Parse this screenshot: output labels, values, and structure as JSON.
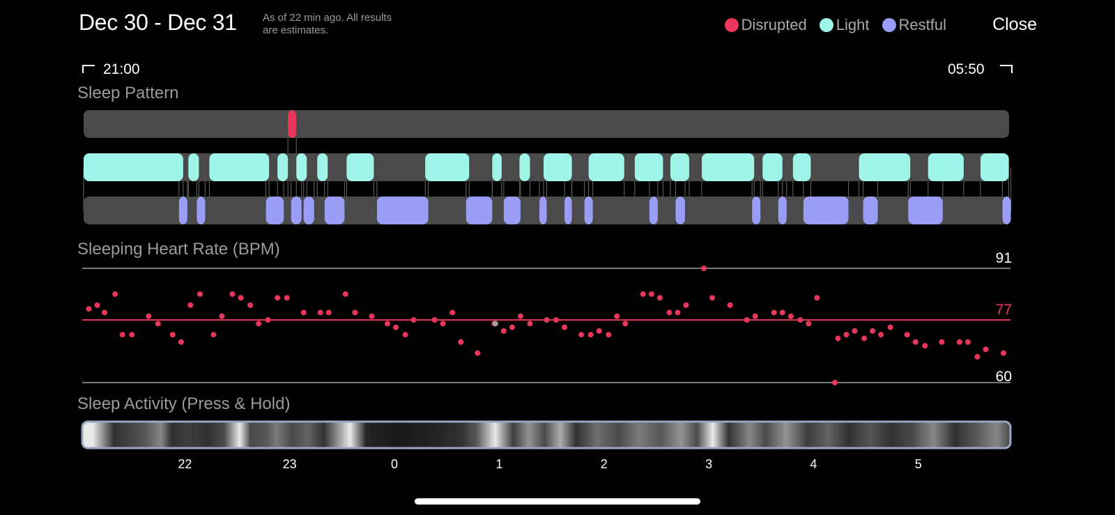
{
  "header": {
    "title": "Dec 30 - Dec 31",
    "subtitle": "As of 22 min ago. All results\nare estimates.",
    "close_label": "Close"
  },
  "legend": [
    {
      "label": "Disrupted",
      "color": "#e8375a"
    },
    {
      "label": "Light",
      "color": "#9ef5e8"
    },
    {
      "label": "Restful",
      "color": "#9a9df5"
    }
  ],
  "time_range": {
    "start": "21:00",
    "end": "05:50"
  },
  "sleep_pattern": {
    "label": "Sleep Pattern",
    "track_color": "#4a4a4a",
    "disrupted": [
      [
        1.95,
        2.03
      ]
    ],
    "light": [
      [
        0.0,
        0.95
      ],
      [
        1.0,
        1.1
      ],
      [
        1.2,
        1.77
      ],
      [
        1.85,
        1.95
      ],
      [
        2.03,
        2.13
      ],
      [
        2.23,
        2.33
      ],
      [
        2.51,
        2.77
      ],
      [
        3.26,
        3.68
      ],
      [
        3.9,
        3.99
      ],
      [
        4.16,
        4.26
      ],
      [
        4.39,
        4.66
      ],
      [
        4.82,
        5.16
      ],
      [
        5.26,
        5.53
      ],
      [
        5.6,
        5.78
      ],
      [
        5.9,
        6.4
      ],
      [
        6.48,
        6.67
      ],
      [
        6.77,
        6.94
      ],
      [
        7.4,
        7.89
      ],
      [
        8.06,
        8.4
      ],
      [
        8.56,
        8.83
      ]
    ],
    "restful": [
      [
        0.91,
        0.99
      ],
      [
        1.08,
        1.16
      ],
      [
        1.74,
        1.91
      ],
      [
        1.98,
        2.08
      ],
      [
        2.1,
        2.2
      ],
      [
        2.3,
        2.49
      ],
      [
        2.8,
        3.29
      ],
      [
        3.65,
        3.9
      ],
      [
        4.01,
        4.17
      ],
      [
        4.35,
        4.42
      ],
      [
        4.59,
        4.66
      ],
      [
        4.78,
        4.86
      ],
      [
        5.4,
        5.48
      ],
      [
        5.65,
        5.74
      ],
      [
        6.38,
        6.46
      ],
      [
        6.63,
        6.71
      ],
      [
        6.87,
        7.3
      ],
      [
        7.44,
        7.58
      ],
      [
        7.87,
        8.2
      ],
      [
        8.77,
        8.85
      ]
    ]
  },
  "heart_rate": {
    "label": "Sleeping Heart Rate (BPM)",
    "max_label": "91",
    "avg_label": "77",
    "min_label": "60",
    "max": 91,
    "avg": 77,
    "min": 60,
    "dot_color": "#e8375a",
    "avg_color": "#e8375a",
    "highlight_color": "#a0a0a0",
    "points": [
      [
        0.05,
        80
      ],
      [
        0.13,
        81
      ],
      [
        0.2,
        79
      ],
      [
        0.3,
        84
      ],
      [
        0.37,
        73
      ],
      [
        0.46,
        73
      ],
      [
        0.62,
        78
      ],
      [
        0.71,
        76
      ],
      [
        0.85,
        73
      ],
      [
        0.93,
        71
      ],
      [
        1.02,
        81
      ],
      [
        1.11,
        84
      ],
      [
        1.24,
        73
      ],
      [
        1.32,
        78
      ],
      [
        1.42,
        84
      ],
      [
        1.5,
        83
      ],
      [
        1.59,
        81
      ],
      [
        1.67,
        76
      ],
      [
        1.76,
        77
      ],
      [
        1.85,
        83
      ],
      [
        1.94,
        83
      ],
      [
        2.1,
        79
      ],
      [
        2.26,
        79
      ],
      [
        2.34,
        79
      ],
      [
        2.5,
        84
      ],
      [
        2.59,
        79
      ],
      [
        2.75,
        78
      ],
      [
        2.9,
        76
      ],
      [
        2.98,
        75
      ],
      [
        3.07,
        73
      ],
      [
        3.15,
        77
      ],
      [
        3.35,
        77
      ],
      [
        3.43,
        76
      ],
      [
        3.52,
        79
      ],
      [
        3.6,
        71
      ],
      [
        3.76,
        68
      ],
      [
        3.92,
        76
      ],
      [
        4.01,
        74
      ],
      [
        4.09,
        75
      ],
      [
        4.17,
        78
      ],
      [
        4.26,
        76
      ],
      [
        4.42,
        77
      ],
      [
        4.51,
        77
      ],
      [
        4.59,
        75
      ],
      [
        4.75,
        73
      ],
      [
        4.84,
        73
      ],
      [
        4.92,
        74
      ],
      [
        5.01,
        73
      ],
      [
        5.09,
        78
      ],
      [
        5.17,
        76
      ],
      [
        5.34,
        84
      ],
      [
        5.42,
        84
      ],
      [
        5.5,
        83
      ],
      [
        5.59,
        79
      ],
      [
        5.67,
        79
      ],
      [
        5.75,
        81
      ],
      [
        5.92,
        91
      ],
      [
        6.0,
        83
      ],
      [
        6.17,
        81
      ],
      [
        6.33,
        77
      ],
      [
        6.41,
        78
      ],
      [
        6.59,
        79
      ],
      [
        6.67,
        79
      ],
      [
        6.75,
        78
      ],
      [
        6.84,
        77
      ],
      [
        6.92,
        76
      ],
      [
        7.0,
        83
      ],
      [
        7.17,
        60
      ],
      [
        7.2,
        72
      ],
      [
        7.28,
        73
      ],
      [
        7.36,
        74
      ],
      [
        7.45,
        72
      ],
      [
        7.53,
        74
      ],
      [
        7.61,
        73
      ],
      [
        7.7,
        75
      ],
      [
        7.86,
        73
      ],
      [
        7.94,
        71
      ],
      [
        8.03,
        70
      ],
      [
        8.19,
        71
      ],
      [
        8.36,
        71
      ],
      [
        8.44,
        71
      ],
      [
        8.53,
        67
      ],
      [
        8.61,
        69
      ],
      [
        8.78,
        68
      ]
    ],
    "highlight_point": [
      3.93,
      76
    ]
  },
  "sleep_activity": {
    "label": "Sleep Activity (Press & Hold)",
    "bands": [
      [
        0.0,
        0.95
      ],
      [
        0.1,
        0.95
      ],
      [
        0.3,
        0.2
      ],
      [
        0.6,
        0.35
      ],
      [
        0.75,
        0.55
      ],
      [
        0.85,
        0.2
      ],
      [
        1.0,
        0.25
      ],
      [
        1.2,
        0.2
      ],
      [
        1.35,
        0.3
      ],
      [
        1.5,
        0.95
      ],
      [
        1.6,
        0.3
      ],
      [
        1.75,
        0.35
      ],
      [
        1.85,
        0.5
      ],
      [
        2.0,
        0.3
      ],
      [
        2.15,
        0.4
      ],
      [
        2.3,
        0.2
      ],
      [
        2.55,
        0.95
      ],
      [
        2.7,
        0.15
      ],
      [
        3.0,
        0.1
      ],
      [
        3.4,
        0.15
      ],
      [
        3.6,
        0.2
      ],
      [
        3.75,
        0.35
      ],
      [
        3.93,
        0.95
      ],
      [
        4.1,
        0.25
      ],
      [
        4.25,
        0.6
      ],
      [
        4.4,
        0.3
      ],
      [
        4.55,
        0.7
      ],
      [
        4.7,
        0.2
      ],
      [
        4.9,
        0.45
      ],
      [
        5.1,
        0.3
      ],
      [
        5.3,
        0.5
      ],
      [
        5.5,
        0.35
      ],
      [
        5.7,
        0.6
      ],
      [
        5.85,
        0.3
      ],
      [
        6.0,
        0.95
      ],
      [
        6.15,
        0.2
      ],
      [
        6.35,
        0.55
      ],
      [
        6.5,
        0.3
      ],
      [
        6.7,
        0.6
      ],
      [
        6.9,
        0.25
      ],
      [
        7.1,
        0.4
      ],
      [
        7.3,
        0.2
      ],
      [
        7.5,
        0.35
      ],
      [
        7.7,
        0.2
      ],
      [
        7.9,
        0.3
      ],
      [
        8.1,
        0.55
      ],
      [
        8.3,
        0.2
      ],
      [
        8.5,
        0.35
      ],
      [
        8.7,
        0.55
      ],
      [
        8.85,
        0.3
      ]
    ],
    "tick_labels": [
      "22",
      "23",
      "0",
      "1",
      "2",
      "3",
      "4",
      "5"
    ],
    "tick_hours": [
      1,
      2,
      3,
      4,
      5,
      6,
      7,
      8
    ]
  }
}
